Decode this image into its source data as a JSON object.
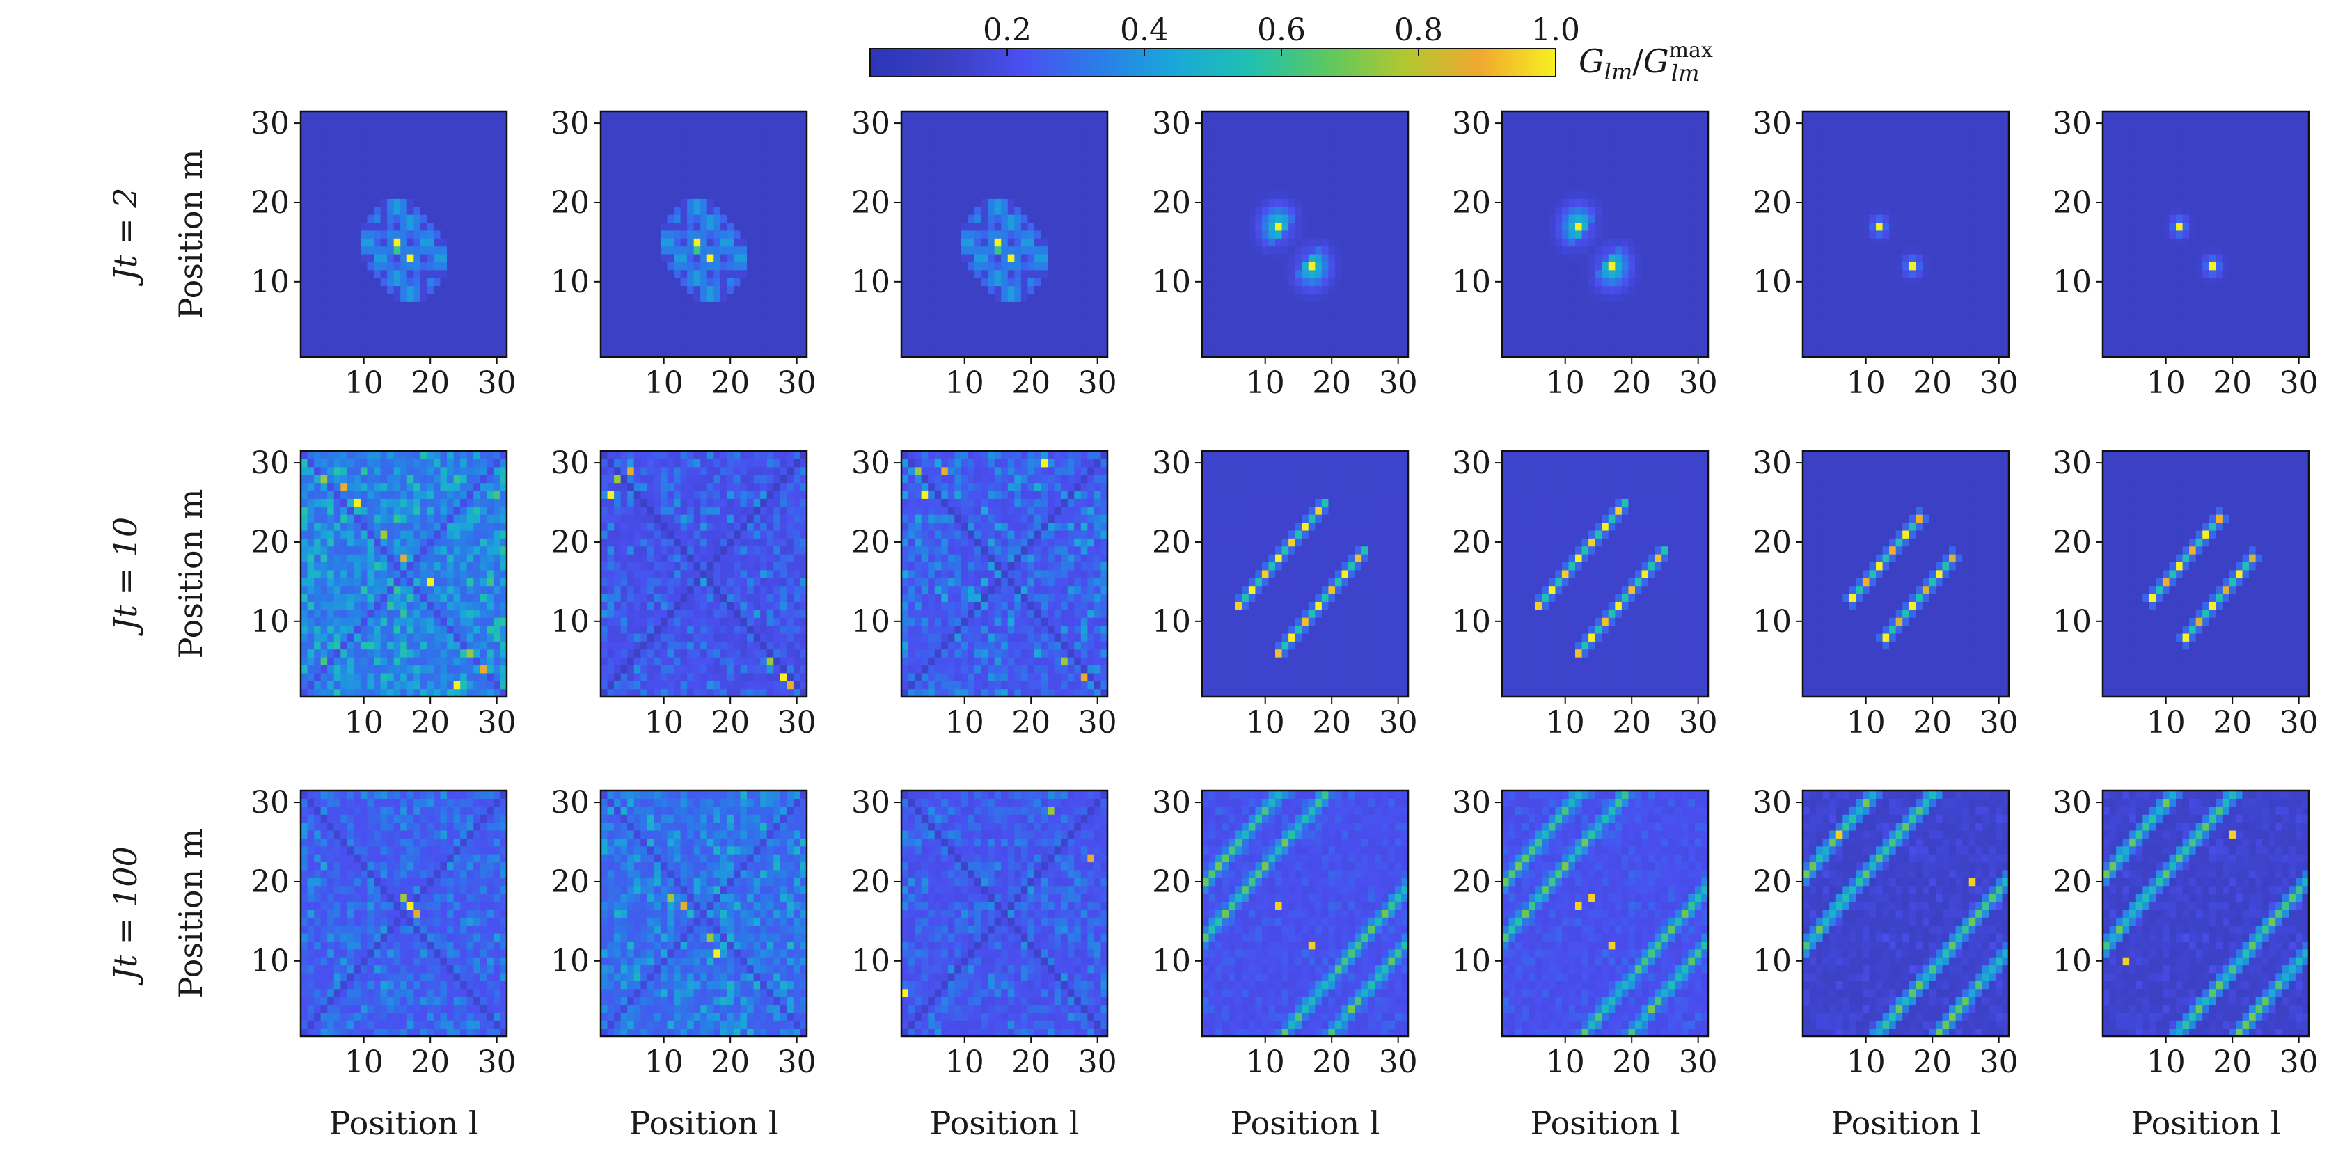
{
  "colors": {
    "background": "#3a3fc0",
    "colormap": [
      "#2c35b8",
      "#3a3fc0",
      "#4a4ff0",
      "#2a7de8",
      "#1aa8d8",
      "#20c0b0",
      "#5cc860",
      "#b0c830",
      "#f0a830",
      "#f8f020"
    ]
  },
  "colorbar": {
    "label_base": "G",
    "label_sub": "lm",
    "label_slash": "/",
    "label_sup": "max",
    "ticks": [
      {
        "value": 0.2,
        "label": "0.2"
      },
      {
        "value": 0.4,
        "label": "0.4"
      },
      {
        "value": 0.6,
        "label": "0.6"
      },
      {
        "value": 0.8,
        "label": "0.8"
      },
      {
        "value": 1.0,
        "label": "1.0"
      }
    ],
    "range": [
      0.0,
      1.0
    ]
  },
  "chart_data": {
    "type": "heatmap",
    "grid_size": 31,
    "xlabel": "Position l",
    "ylabel": "Position m",
    "xlim": [
      1,
      31
    ],
    "ylim": [
      1,
      31
    ],
    "tick_values": [
      10,
      20,
      30
    ],
    "tick_labels": [
      "10",
      "20",
      "30"
    ],
    "columns": 7,
    "rows": [
      {
        "label": "Jt = 2",
        "t": 2
      },
      {
        "label": "Jt = 10",
        "t": 10
      },
      {
        "label": "Jt = 100",
        "t": 100
      }
    ],
    "panels": [
      {
        "row": 0,
        "col": 0,
        "pattern": "cross",
        "peaks": [
          [
            15,
            15
          ],
          [
            17,
            13
          ]
        ],
        "spread": 5,
        "bg": 0.12
      },
      {
        "row": 0,
        "col": 1,
        "pattern": "cross",
        "peaks": [
          [
            15,
            15
          ],
          [
            17,
            13
          ]
        ],
        "spread": 5,
        "bg": 0.12
      },
      {
        "row": 0,
        "col": 2,
        "pattern": "cross",
        "peaks": [
          [
            15,
            15
          ],
          [
            17,
            13
          ]
        ],
        "spread": 5,
        "bg": 0.12
      },
      {
        "row": 0,
        "col": 3,
        "pattern": "blob",
        "peaks": [
          [
            12,
            17
          ],
          [
            17,
            12
          ]
        ],
        "spread": 4,
        "bg": 0.12
      },
      {
        "row": 0,
        "col": 4,
        "pattern": "blob",
        "peaks": [
          [
            12,
            17
          ],
          [
            17,
            12
          ]
        ],
        "spread": 4,
        "bg": 0.12
      },
      {
        "row": 0,
        "col": 5,
        "pattern": "dot",
        "peaks": [
          [
            12,
            17
          ],
          [
            17,
            12
          ]
        ],
        "spread": 2,
        "bg": 0.12
      },
      {
        "row": 0,
        "col": 6,
        "pattern": "dot",
        "peaks": [
          [
            12,
            17
          ],
          [
            17,
            12
          ]
        ],
        "spread": 2,
        "bg": 0.12
      },
      {
        "row": 1,
        "col": 0,
        "pattern": "noise",
        "seed": 11,
        "bg": 0.28,
        "amp": 0.35,
        "peaks": [
          [
            4,
            28
          ],
          [
            7,
            27
          ],
          [
            9,
            25
          ],
          [
            13,
            21
          ],
          [
            16,
            18
          ],
          [
            20,
            15
          ],
          [
            26,
            6
          ],
          [
            28,
            4
          ],
          [
            24,
            2
          ]
        ]
      },
      {
        "row": 1,
        "col": 1,
        "pattern": "noise",
        "seed": 23,
        "bg": 0.18,
        "amp": 0.25,
        "peaks": [
          [
            3,
            28
          ],
          [
            5,
            29
          ],
          [
            28,
            3
          ],
          [
            26,
            5
          ],
          [
            29,
            2
          ],
          [
            2,
            26
          ]
        ]
      },
      {
        "row": 1,
        "col": 2,
        "pattern": "noise",
        "seed": 37,
        "bg": 0.2,
        "amp": 0.28,
        "peaks": [
          [
            3,
            29
          ],
          [
            7,
            29
          ],
          [
            22,
            30
          ],
          [
            25,
            5
          ],
          [
            28,
            3
          ],
          [
            4,
            26
          ]
        ]
      },
      {
        "row": 1,
        "col": 3,
        "pattern": "diag2",
        "offset": 6,
        "span": [
          9,
          21
        ],
        "bg": 0.14
      },
      {
        "row": 1,
        "col": 4,
        "pattern": "diag2",
        "offset": 6,
        "span": [
          9,
          21
        ],
        "bg": 0.14
      },
      {
        "row": 1,
        "col": 5,
        "pattern": "diag2",
        "offset": 5,
        "span": [
          10,
          20
        ],
        "bg": 0.12
      },
      {
        "row": 1,
        "col": 6,
        "pattern": "diag2",
        "offset": 5,
        "span": [
          10,
          20
        ],
        "bg": 0.12
      },
      {
        "row": 2,
        "col": 0,
        "pattern": "noise",
        "seed": 51,
        "bg": 0.22,
        "amp": 0.22,
        "peaks": [
          [
            16,
            18
          ],
          [
            18,
            16
          ],
          [
            17,
            17
          ]
        ]
      },
      {
        "row": 2,
        "col": 1,
        "pattern": "noise",
        "seed": 67,
        "bg": 0.25,
        "amp": 0.28,
        "peaks": [
          [
            11,
            18
          ],
          [
            13,
            17
          ],
          [
            18,
            11
          ],
          [
            17,
            13
          ]
        ]
      },
      {
        "row": 2,
        "col": 2,
        "pattern": "noise",
        "seed": 79,
        "bg": 0.2,
        "amp": 0.22,
        "peaks": [
          [
            23,
            29
          ],
          [
            29,
            23
          ],
          [
            1,
            6
          ]
        ]
      },
      {
        "row": 2,
        "col": 3,
        "pattern": "diagwrap",
        "offset": 12,
        "bg": 0.2,
        "peaks": [
          [
            12,
            17
          ],
          [
            17,
            12
          ]
        ]
      },
      {
        "row": 2,
        "col": 4,
        "pattern": "diagwrap",
        "offset": 12,
        "bg": 0.2,
        "peaks": [
          [
            12,
            17
          ],
          [
            17,
            12
          ],
          [
            14,
            18
          ]
        ]
      },
      {
        "row": 2,
        "col": 5,
        "pattern": "diagwrap",
        "offset": 20,
        "bg": 0.12,
        "peaks": [
          [
            26,
            20
          ],
          [
            6,
            26
          ]
        ]
      },
      {
        "row": 2,
        "col": 6,
        "pattern": "diagwrap",
        "offset": 20,
        "bg": 0.12,
        "peaks": [
          [
            4,
            10
          ],
          [
            20,
            26
          ]
        ]
      }
    ]
  }
}
